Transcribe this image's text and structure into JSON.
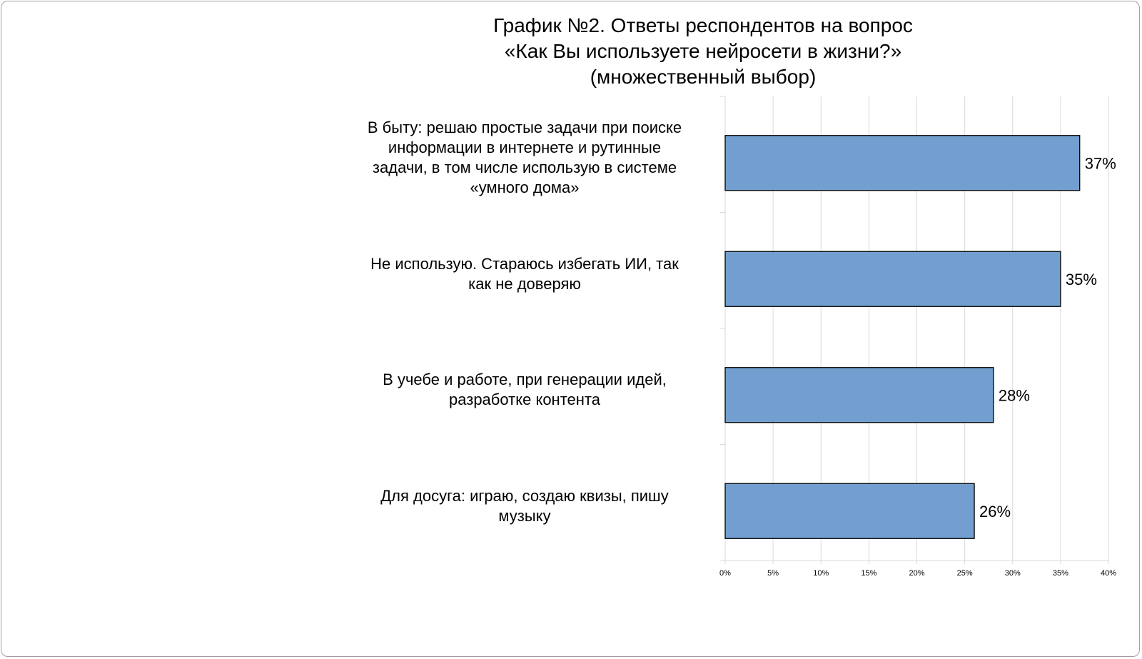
{
  "chart_data": {
    "type": "bar",
    "orientation": "horizontal",
    "title": [
      "График №2. Ответы респондентов на вопрос",
      "«Как Вы используете нейросети в жизни?»",
      "(множественный выбор)"
    ],
    "categories": [
      "В быту: решаю простые задачи при поиске информации в интернете и рутинные задачи, в том числе использую в системе «умного дома»",
      "Не использую. Стараюсь избегать ИИ, так как не доверяю",
      "В учебе и работе, при генерации идей, разработке контента",
      "Для досуга: играю, создаю квизы, пишу музыку"
    ],
    "category_lines": [
      [
        "В быту: решаю простые задачи при поиске",
        "информации в интернете и рутинные",
        "задачи, в том числе использую в системе",
        "«умного дома»"
      ],
      [
        "Не использую. Стараюсь избегать ИИ, так",
        "как не доверяю"
      ],
      [
        "В учебе и работе, при генерации идей,",
        "разработке контента"
      ],
      [
        "Для досуга: играю, создаю квизы, пишу",
        "музыку"
      ]
    ],
    "values": [
      37,
      35,
      28,
      26
    ],
    "data_labels": [
      "37%",
      "35%",
      "28%",
      "26%"
    ],
    "xlim": [
      0,
      40
    ],
    "x_ticks": [
      0,
      5,
      10,
      15,
      20,
      25,
      30,
      35,
      40
    ],
    "x_tick_labels": [
      "0%",
      "5%",
      "10%",
      "15%",
      "20%",
      "25%",
      "30%",
      "35%",
      "40%"
    ],
    "xlabel": "",
    "ylabel": "",
    "grid": "vertical",
    "legend": "none",
    "bar_color": "#729fcf",
    "bar_edge_color": "#000000",
    "grid_color": "#d9d9d9"
  }
}
